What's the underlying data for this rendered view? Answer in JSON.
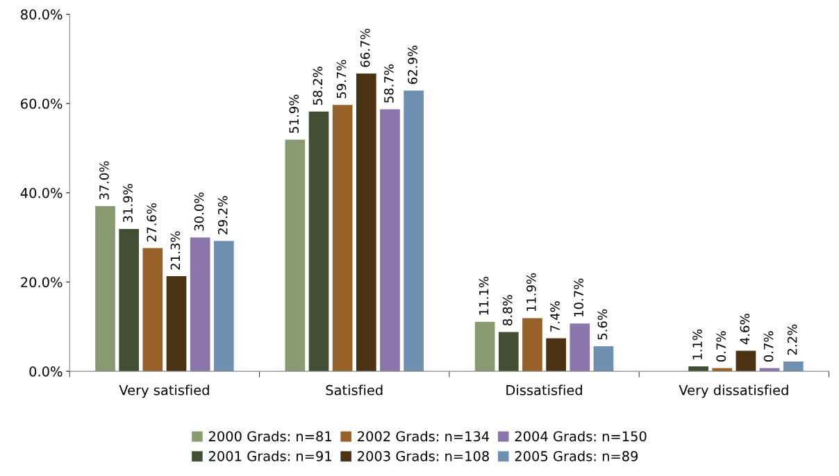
{
  "chart_data": {
    "type": "bar",
    "categories": [
      "Very satisfied",
      "Satisfied",
      "Dissatisfied",
      "Very dissatisfied"
    ],
    "series": [
      {
        "name": "2000 Grads: n=81",
        "color": "#8a9a70",
        "values": [
          37.0,
          51.9,
          11.1,
          null
        ],
        "value_labels": [
          "37.0%",
          "51.9%",
          "11.1%",
          null
        ]
      },
      {
        "name": "2001 Grads: n=91",
        "color": "#434f33",
        "values": [
          31.9,
          58.2,
          8.8,
          1.1
        ],
        "value_labels": [
          "31.9%",
          "58.2%",
          "8.8%",
          "1.1%"
        ]
      },
      {
        "name": "2002 Grads: n=134",
        "color": "#97612a",
        "values": [
          27.6,
          59.7,
          11.9,
          0.7
        ],
        "value_labels": [
          "27.6%",
          "59.7%",
          "11.9%",
          "0.7%"
        ]
      },
      {
        "name": "2003 Grads: n=108",
        "color": "#4a3213",
        "values": [
          21.3,
          66.7,
          7.4,
          4.6
        ],
        "value_labels": [
          "21.3%",
          "66.7%",
          "7.4%",
          "4.6%"
        ]
      },
      {
        "name": "2004 Grads: n=150",
        "color": "#8b76ab",
        "values": [
          30.0,
          58.7,
          10.7,
          0.7
        ],
        "value_labels": [
          "30.0%",
          "58.7%",
          "10.7%",
          "0.7%"
        ]
      },
      {
        "name": "2005 Grads: n=89",
        "color": "#6f8fb0",
        "values": [
          29.2,
          62.9,
          5.6,
          2.2
        ],
        "value_labels": [
          "29.2%",
          "62.9%",
          "5.6%",
          "2.2%"
        ]
      }
    ],
    "ylim": [
      0,
      80
    ],
    "yticks": [
      {
        "value": 0,
        "label": "0.0%"
      },
      {
        "value": 20,
        "label": "20.0%"
      },
      {
        "value": 40,
        "label": "40.0%"
      },
      {
        "value": 60,
        "label": "60.0%"
      },
      {
        "value": 80,
        "label": "80.0%"
      }
    ],
    "grid": false,
    "legend": "bottom"
  }
}
